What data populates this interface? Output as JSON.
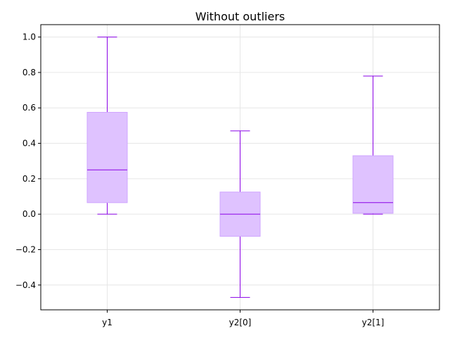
{
  "chart_data": {
    "type": "boxplot",
    "title": "Without outliers",
    "xlabel": "",
    "ylabel": "",
    "categories": [
      "y1",
      "y2[0]",
      "y2[1]"
    ],
    "boxes": [
      {
        "whislo": 0.0,
        "q1": 0.065,
        "med": 0.25,
        "q3": 0.575,
        "whishi": 1.0
      },
      {
        "whislo": -0.47,
        "q1": -0.125,
        "med": 0.0,
        "q3": 0.125,
        "whishi": 0.47
      },
      {
        "whislo": 0.0,
        "q1": 0.005,
        "med": 0.065,
        "q3": 0.33,
        "whishi": 0.78
      }
    ],
    "ylim": [
      -0.54,
      1.07
    ],
    "yticks": [
      -0.4,
      -0.2,
      0.0,
      0.2,
      0.4,
      0.6,
      0.8,
      1.0
    ],
    "ytick_labels": [
      "−0.4",
      "−0.2",
      "0.0",
      "0.2",
      "0.4",
      "0.6",
      "0.8",
      "1.0"
    ],
    "grid": true,
    "colors": {
      "box_fill": "#dfc2ff",
      "box_edge": "#cfa5ff",
      "line": "#8a00e6",
      "grid": "#e6e6e6"
    }
  }
}
